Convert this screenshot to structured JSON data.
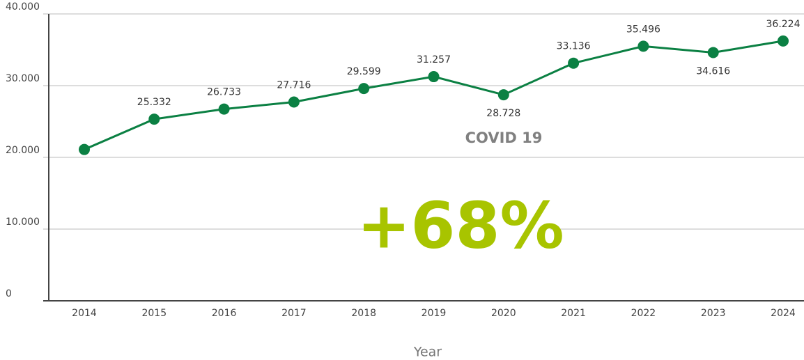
{
  "chart_data": {
    "type": "line",
    "categories": [
      "2014",
      "2015",
      "2016",
      "2017",
      "2018",
      "2019",
      "2020",
      "2021",
      "2022",
      "2023",
      "2024"
    ],
    "series": [
      {
        "name": null,
        "color": "#0b8043",
        "values": [
          21100,
          25332,
          26733,
          27716,
          29599,
          31257,
          28728,
          33136,
          35496,
          34616,
          36224
        ],
        "value_labels": [
          null,
          "25.332",
          "26.733",
          "27.716",
          "29.599",
          "31.257",
          "28.728",
          "33.136",
          "35.496",
          "34.616",
          "36.224"
        ]
      }
    ],
    "ylim": [
      0,
      40000
    ],
    "yticks": [
      0,
      {
        "value": 10000,
        "label": "10.000"
      },
      {
        "value": 20000,
        "label": "20.000"
      },
      {
        "value": 30000,
        "label": "30.000"
      },
      {
        "value": 40000,
        "label": "40.000"
      }
    ],
    "grid": true,
    "xlabel": "Year",
    "annotations": [
      {
        "text": "COVID 19",
        "color": "#808080"
      },
      {
        "text": "+68%",
        "color": "#a8c400"
      }
    ]
  }
}
